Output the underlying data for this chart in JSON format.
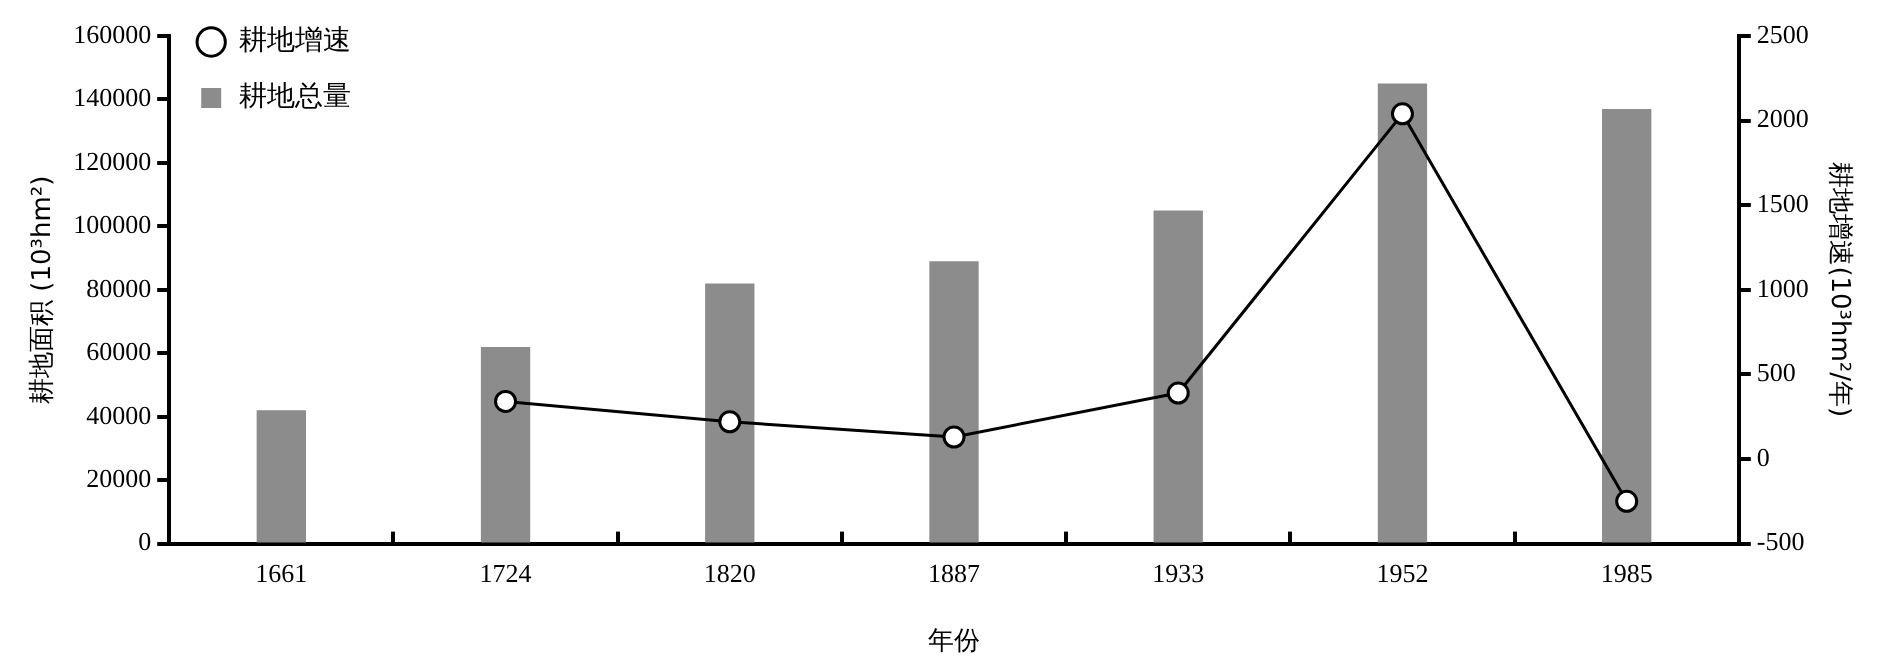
{
  "chart_data": {
    "type": "bar",
    "xlabel": "年份",
    "ylabel": "耕地面积 (10³hm²)",
    "y2label": "耕地增速(10³hm²/年)",
    "categories": [
      "1661",
      "1724",
      "1820",
      "1887",
      "1933",
      "1952",
      "1985"
    ],
    "series": [
      {
        "name": "耕地总量",
        "color": "#8c8c8c",
        "values": [
          42000,
          62000,
          82000,
          89000,
          105000,
          145000,
          137000
        ]
      },
      {
        "name": "耕地增速",
        "type": "line",
        "axis": "y2",
        "color": "#000000",
        "values": [
          null,
          340,
          220,
          130,
          390,
          2040,
          -250
        ]
      }
    ],
    "ylim": [
      0,
      160000
    ],
    "yticks": [
      0,
      20000,
      40000,
      60000,
      80000,
      100000,
      120000,
      140000,
      160000
    ],
    "y2lim": [
      -500,
      2500
    ],
    "y2ticks": [
      -500,
      0,
      500,
      1000,
      1500,
      2000,
      2500
    ],
    "legend": "top left",
    "marker": "circle",
    "grid": false
  }
}
